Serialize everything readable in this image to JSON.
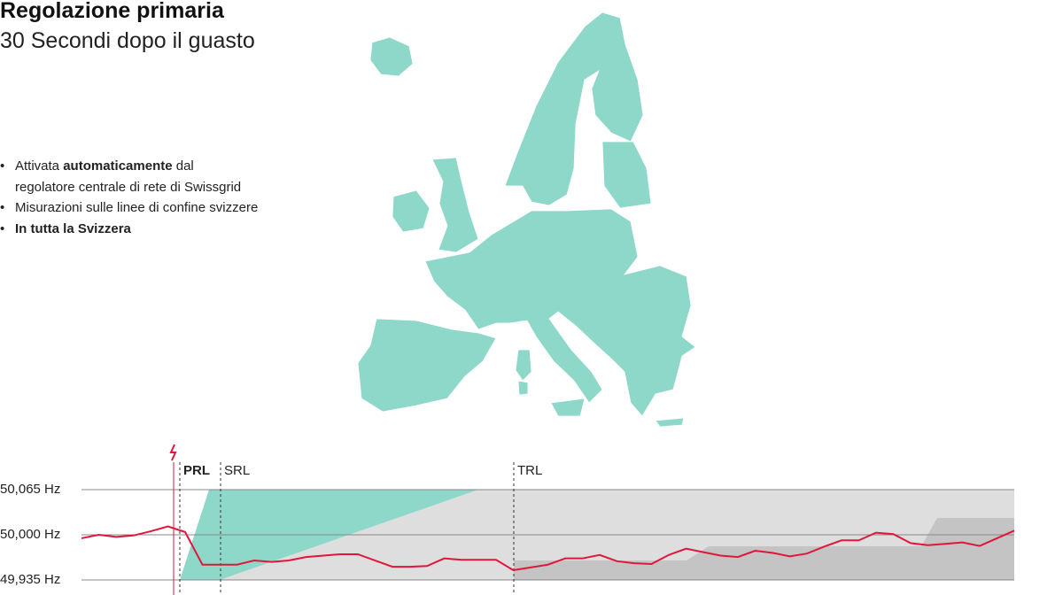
{
  "header": {
    "title": "Regolazione primaria",
    "subtitle": "30 Secondi dopo il guasto"
  },
  "bullets": [
    [
      {
        "text": "Attivata ",
        "bold": false
      },
      {
        "text": "automaticamente",
        "bold": true
      },
      {
        "text": " dal",
        "bold": false
      }
    ],
    [
      {
        "text": "regolatore centrale di rete di Swissgrid",
        "bold": false
      }
    ],
    [
      {
        "text": "Misurazioni sulle linee di confine svizzere",
        "bold": false
      }
    ],
    [
      {
        "text": "In tutta la Svizzera",
        "bold": true
      }
    ]
  ],
  "chart_data": {
    "type": "line",
    "series": [
      {
        "color": "#e2163a",
        "values": [
          49.995,
          50.0,
          49.997,
          49.999,
          50.005,
          50.012,
          50.004,
          49.957,
          49.957,
          49.957,
          49.963,
          49.961,
          49.963,
          49.968,
          49.97,
          49.972,
          49.972,
          49.963,
          49.954,
          49.954,
          49.955,
          49.966,
          49.964,
          49.964,
          49.964,
          49.949,
          49.953,
          49.957,
          49.966,
          49.966,
          49.971,
          49.962,
          49.959,
          49.958,
          49.971,
          49.98,
          49.975,
          49.97,
          49.968,
          49.977,
          49.974,
          49.969,
          49.973,
          49.983,
          49.992,
          49.992,
          50.003,
          50.001,
          49.988,
          49.985,
          49.987,
          49.989,
          49.984,
          49.995,
          50.006
        ]
      }
    ],
    "ylim": [
      49.935,
      50.065
    ],
    "yticks": [
      {
        "value": 49.935,
        "label": "49,935 Hz"
      },
      {
        "value": 50.0,
        "label": "50,000 Hz"
      },
      {
        "value": 50.065,
        "label": "50,065 Hz"
      }
    ],
    "grid": true,
    "annotations": [
      "PRL",
      "SRL",
      "TRL"
    ]
  }
}
